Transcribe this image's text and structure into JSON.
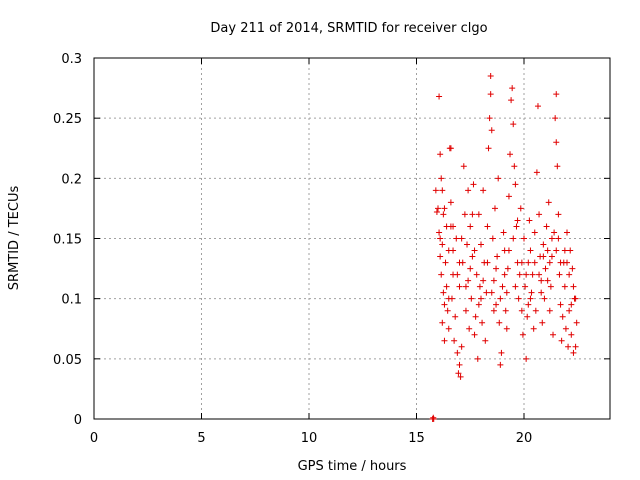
{
  "chart_data": {
    "type": "scatter",
    "title": "Day 211 of 2014, SRMTID for receiver clgo",
    "xlabel": "GPS time / hours",
    "ylabel": "SRMTID / TECUs",
    "xlim": [
      0,
      24
    ],
    "ylim": [
      0,
      0.3
    ],
    "xticks": [
      0,
      5,
      10,
      15,
      20
    ],
    "xtick_labels": [
      "0",
      "5",
      "10",
      "15",
      "20"
    ],
    "yticks": [
      0,
      0.05,
      0.1,
      0.15,
      0.2,
      0.25,
      0.3
    ],
    "ytick_labels": [
      "0",
      "0.05",
      "0.1",
      "0.15",
      "0.2",
      "0.25",
      "0.3"
    ],
    "grid": true,
    "marker": "+",
    "color": "#e00000",
    "series": [
      {
        "name": "SRMTID",
        "points": [
          [
            15.75,
            0.0
          ],
          [
            15.8,
            0.0
          ],
          [
            15.78,
            0.001
          ],
          [
            15.9,
            0.19
          ],
          [
            15.95,
            0.172
          ],
          [
            16.0,
            0.175
          ],
          [
            16.05,
            0.155
          ],
          [
            16.05,
            0.268
          ],
          [
            16.1,
            0.22
          ],
          [
            16.1,
            0.135
          ],
          [
            16.15,
            0.2
          ],
          [
            16.15,
            0.12
          ],
          [
            16.2,
            0.145
          ],
          [
            16.2,
            0.08
          ],
          [
            16.25,
            0.105
          ],
          [
            16.25,
            0.17
          ],
          [
            16.3,
            0.065
          ],
          [
            16.3,
            0.095
          ],
          [
            16.35,
            0.13
          ],
          [
            16.4,
            0.11
          ],
          [
            16.4,
            0.16
          ],
          [
            16.45,
            0.09
          ],
          [
            16.5,
            0.14
          ],
          [
            16.5,
            0.075
          ],
          [
            16.55,
            0.225
          ],
          [
            16.6,
            0.225
          ],
          [
            16.6,
            0.18
          ],
          [
            16.65,
            0.1
          ],
          [
            16.7,
            0.16
          ],
          [
            16.7,
            0.12
          ],
          [
            16.75,
            0.065
          ],
          [
            16.8,
            0.085
          ],
          [
            16.85,
            0.15
          ],
          [
            16.9,
            0.055
          ],
          [
            16.95,
            0.038
          ],
          [
            17.0,
            0.045
          ],
          [
            17.0,
            0.11
          ],
          [
            17.05,
            0.035
          ],
          [
            17.1,
            0.06
          ],
          [
            17.15,
            0.13
          ],
          [
            17.2,
            0.21
          ],
          [
            17.25,
            0.17
          ],
          [
            17.3,
            0.09
          ],
          [
            17.35,
            0.145
          ],
          [
            17.4,
            0.19
          ],
          [
            17.4,
            0.115
          ],
          [
            17.45,
            0.075
          ],
          [
            17.5,
            0.16
          ],
          [
            17.55,
            0.1
          ],
          [
            17.6,
            0.135
          ],
          [
            17.65,
            0.195
          ],
          [
            17.7,
            0.07
          ],
          [
            17.75,
            0.085
          ],
          [
            17.8,
            0.12
          ],
          [
            17.85,
            0.05
          ],
          [
            17.9,
            0.17
          ],
          [
            17.95,
            0.11
          ],
          [
            18.0,
            0.145
          ],
          [
            18.05,
            0.08
          ],
          [
            18.1,
            0.19
          ],
          [
            18.15,
            0.13
          ],
          [
            18.2,
            0.065
          ],
          [
            18.25,
            0.105
          ],
          [
            18.3,
            0.16
          ],
          [
            18.35,
            0.225
          ],
          [
            18.4,
            0.25
          ],
          [
            18.45,
            0.285
          ],
          [
            18.45,
            0.27
          ],
          [
            18.5,
            0.24
          ],
          [
            18.55,
            0.15
          ],
          [
            18.6,
            0.115
          ],
          [
            18.65,
            0.175
          ],
          [
            18.7,
            0.095
          ],
          [
            18.75,
            0.135
          ],
          [
            18.8,
            0.2
          ],
          [
            18.85,
            0.08
          ],
          [
            18.9,
            0.045
          ],
          [
            18.95,
            0.055
          ],
          [
            19.0,
            0.11
          ],
          [
            19.05,
            0.155
          ],
          [
            19.1,
            0.14
          ],
          [
            19.15,
            0.09
          ],
          [
            19.2,
            0.075
          ],
          [
            19.25,
            0.125
          ],
          [
            19.3,
            0.185
          ],
          [
            19.35,
            0.22
          ],
          [
            19.4,
            0.265
          ],
          [
            19.45,
            0.275
          ],
          [
            19.5,
            0.245
          ],
          [
            19.55,
            0.21
          ],
          [
            19.6,
            0.195
          ],
          [
            19.65,
            0.16
          ],
          [
            19.7,
            0.13
          ],
          [
            19.75,
            0.1
          ],
          [
            19.8,
            0.12
          ],
          [
            19.85,
            0.175
          ],
          [
            19.9,
            0.09
          ],
          [
            19.95,
            0.07
          ],
          [
            20.0,
            0.15
          ],
          [
            20.05,
            0.11
          ],
          [
            20.1,
            0.05
          ],
          [
            20.15,
            0.085
          ],
          [
            20.2,
            0.13
          ],
          [
            20.25,
            0.165
          ],
          [
            20.3,
            0.14
          ],
          [
            20.35,
            0.105
          ],
          [
            20.4,
            0.12
          ],
          [
            20.45,
            0.075
          ],
          [
            20.5,
            0.155
          ],
          [
            20.55,
            0.09
          ],
          [
            20.6,
            0.205
          ],
          [
            20.65,
            0.26
          ],
          [
            20.7,
            0.17
          ],
          [
            20.75,
            0.135
          ],
          [
            20.8,
            0.115
          ],
          [
            20.85,
            0.08
          ],
          [
            20.9,
            0.145
          ],
          [
            20.95,
            0.1
          ],
          [
            21.0,
            0.125
          ],
          [
            21.05,
            0.16
          ],
          [
            21.1,
            0.14
          ],
          [
            21.15,
            0.18
          ],
          [
            21.2,
            0.09
          ],
          [
            21.25,
            0.11
          ],
          [
            21.3,
            0.135
          ],
          [
            21.35,
            0.07
          ],
          [
            21.4,
            0.155
          ],
          [
            21.45,
            0.25
          ],
          [
            21.5,
            0.23
          ],
          [
            21.5,
            0.27
          ],
          [
            21.55,
            0.21
          ],
          [
            21.6,
            0.17
          ],
          [
            21.65,
            0.12
          ],
          [
            21.7,
            0.095
          ],
          [
            21.75,
            0.065
          ],
          [
            21.8,
            0.085
          ],
          [
            21.85,
            0.13
          ],
          [
            21.9,
            0.11
          ],
          [
            21.95,
            0.075
          ],
          [
            22.0,
            0.155
          ],
          [
            22.05,
            0.06
          ],
          [
            22.1,
            0.09
          ],
          [
            22.15,
            0.14
          ],
          [
            22.2,
            0.07
          ],
          [
            22.25,
            0.125
          ],
          [
            22.3,
            0.055
          ],
          [
            22.35,
            0.1
          ],
          [
            22.4,
            0.06
          ],
          [
            22.45,
            0.08
          ],
          [
            16.1,
            0.15
          ],
          [
            16.3,
            0.175
          ],
          [
            16.5,
            0.1
          ],
          [
            16.7,
            0.14
          ],
          [
            16.9,
            0.12
          ],
          [
            17.1,
            0.15
          ],
          [
            17.3,
            0.11
          ],
          [
            17.5,
            0.125
          ],
          [
            17.7,
            0.14
          ],
          [
            17.9,
            0.095
          ],
          [
            18.1,
            0.115
          ],
          [
            18.3,
            0.13
          ],
          [
            18.5,
            0.105
          ],
          [
            18.7,
            0.125
          ],
          [
            18.9,
            0.1
          ],
          [
            19.1,
            0.12
          ],
          [
            19.3,
            0.14
          ],
          [
            19.5,
            0.15
          ],
          [
            19.7,
            0.165
          ],
          [
            19.9,
            0.13
          ],
          [
            20.1,
            0.12
          ],
          [
            20.3,
            0.1
          ],
          [
            20.5,
            0.13
          ],
          [
            20.7,
            0.12
          ],
          [
            20.9,
            0.135
          ],
          [
            21.1,
            0.115
          ],
          [
            21.3,
            0.15
          ],
          [
            21.5,
            0.14
          ],
          [
            21.7,
            0.13
          ],
          [
            21.9,
            0.14
          ],
          [
            22.1,
            0.12
          ],
          [
            22.3,
            0.11
          ],
          [
            22.4,
            0.1
          ],
          [
            16.2,
            0.19
          ],
          [
            16.6,
            0.16
          ],
          [
            17.0,
            0.13
          ],
          [
            17.6,
            0.17
          ],
          [
            18.0,
            0.1
          ],
          [
            18.6,
            0.09
          ],
          [
            19.2,
            0.105
          ],
          [
            19.6,
            0.11
          ],
          [
            20.2,
            0.095
          ],
          [
            20.8,
            0.105
          ],
          [
            21.2,
            0.13
          ],
          [
            21.6,
            0.15
          ],
          [
            22.0,
            0.13
          ],
          [
            22.2,
            0.095
          ]
        ]
      }
    ]
  }
}
